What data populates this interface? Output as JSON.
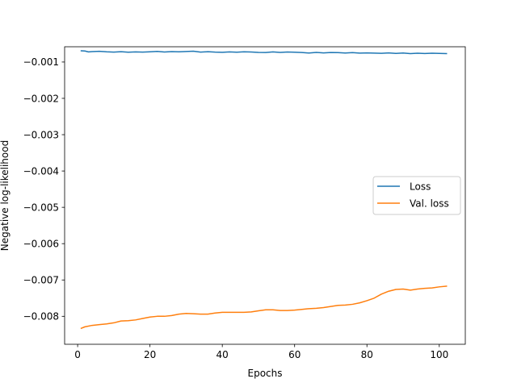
{
  "chart_data": {
    "type": "line",
    "title": "",
    "xlabel": "Epochs",
    "ylabel": "Negative log-likelihood",
    "xlim": [
      -3.6,
      107.2
    ],
    "ylim": [
      -0.00877,
      -0.00058
    ],
    "xticks": [
      0,
      20,
      40,
      60,
      80,
      100
    ],
    "xtick_labels": [
      "0",
      "20",
      "40",
      "60",
      "80",
      "100"
    ],
    "yticks": [
      -0.008,
      -0.007,
      -0.006,
      -0.005,
      -0.004,
      -0.003,
      -0.002,
      -0.001
    ],
    "ytick_labels": [
      "−0.008",
      "−0.007",
      "−0.006",
      "−0.005",
      "−0.004",
      "−0.003",
      "−0.002",
      "−0.001"
    ],
    "grid": false,
    "legend_position": "center-right",
    "series": [
      {
        "name": "Loss",
        "color": "#1f77b4",
        "x": [
          1,
          2,
          3,
          4,
          6,
          8,
          10,
          12,
          14,
          16,
          18,
          20,
          22,
          24,
          26,
          28,
          30,
          32,
          34,
          36,
          38,
          40,
          42,
          44,
          46,
          48,
          50,
          52,
          54,
          56,
          58,
          60,
          62,
          64,
          66,
          68,
          70,
          72,
          74,
          76,
          78,
          80,
          82,
          84,
          86,
          88,
          90,
          92,
          94,
          96,
          98,
          100,
          102
        ],
        "y": [
          -0.000691,
          -0.000697,
          -0.000722,
          -0.000713,
          -0.000704,
          -0.000718,
          -0.000726,
          -0.000716,
          -0.000731,
          -0.000722,
          -0.000727,
          -0.000718,
          -0.000708,
          -0.000724,
          -0.000713,
          -0.00072,
          -0.00071,
          -0.000703,
          -0.000728,
          -0.000717,
          -0.000727,
          -0.000732,
          -0.000721,
          -0.00073,
          -0.000718,
          -0.000724,
          -0.000734,
          -0.000738,
          -0.000721,
          -0.000734,
          -0.000725,
          -0.000729,
          -0.000737,
          -0.000752,
          -0.000736,
          -0.000749,
          -0.000738,
          -0.000741,
          -0.000751,
          -0.000742,
          -0.000755,
          -0.000748,
          -0.000754,
          -0.000761,
          -0.000749,
          -0.000762,
          -0.000752,
          -0.000768,
          -0.000758,
          -0.000765,
          -0.000759,
          -0.000762,
          -0.000768
        ]
      },
      {
        "name": "Val. loss",
        "color": "#ff7f0e",
        "x": [
          1,
          2,
          4,
          6,
          8,
          10,
          12,
          14,
          16,
          18,
          20,
          22,
          24,
          26,
          28,
          30,
          32,
          34,
          36,
          38,
          40,
          42,
          44,
          46,
          48,
          50,
          52,
          54,
          56,
          58,
          60,
          62,
          64,
          66,
          68,
          70,
          72,
          74,
          76,
          78,
          80,
          82,
          84,
          86,
          88,
          90,
          92,
          94,
          96,
          98,
          100,
          102
        ],
        "y": [
          -0.00833,
          -0.00829,
          -0.00825,
          -0.00823,
          -0.00821,
          -0.00818,
          -0.00813,
          -0.00812,
          -0.0081,
          -0.00806,
          -0.00802,
          -0.008,
          -0.008,
          -0.00798,
          -0.00794,
          -0.00792,
          -0.00793,
          -0.00794,
          -0.00794,
          -0.00791,
          -0.00789,
          -0.00789,
          -0.00789,
          -0.00789,
          -0.00788,
          -0.00785,
          -0.00782,
          -0.00782,
          -0.00784,
          -0.00784,
          -0.00783,
          -0.00781,
          -0.00779,
          -0.00778,
          -0.00776,
          -0.00773,
          -0.0077,
          -0.00769,
          -0.00767,
          -0.00763,
          -0.00757,
          -0.0075,
          -0.00739,
          -0.00731,
          -0.00726,
          -0.00725,
          -0.00728,
          -0.00725,
          -0.00723,
          -0.00722,
          -0.00719,
          -0.00717
        ]
      }
    ]
  }
}
